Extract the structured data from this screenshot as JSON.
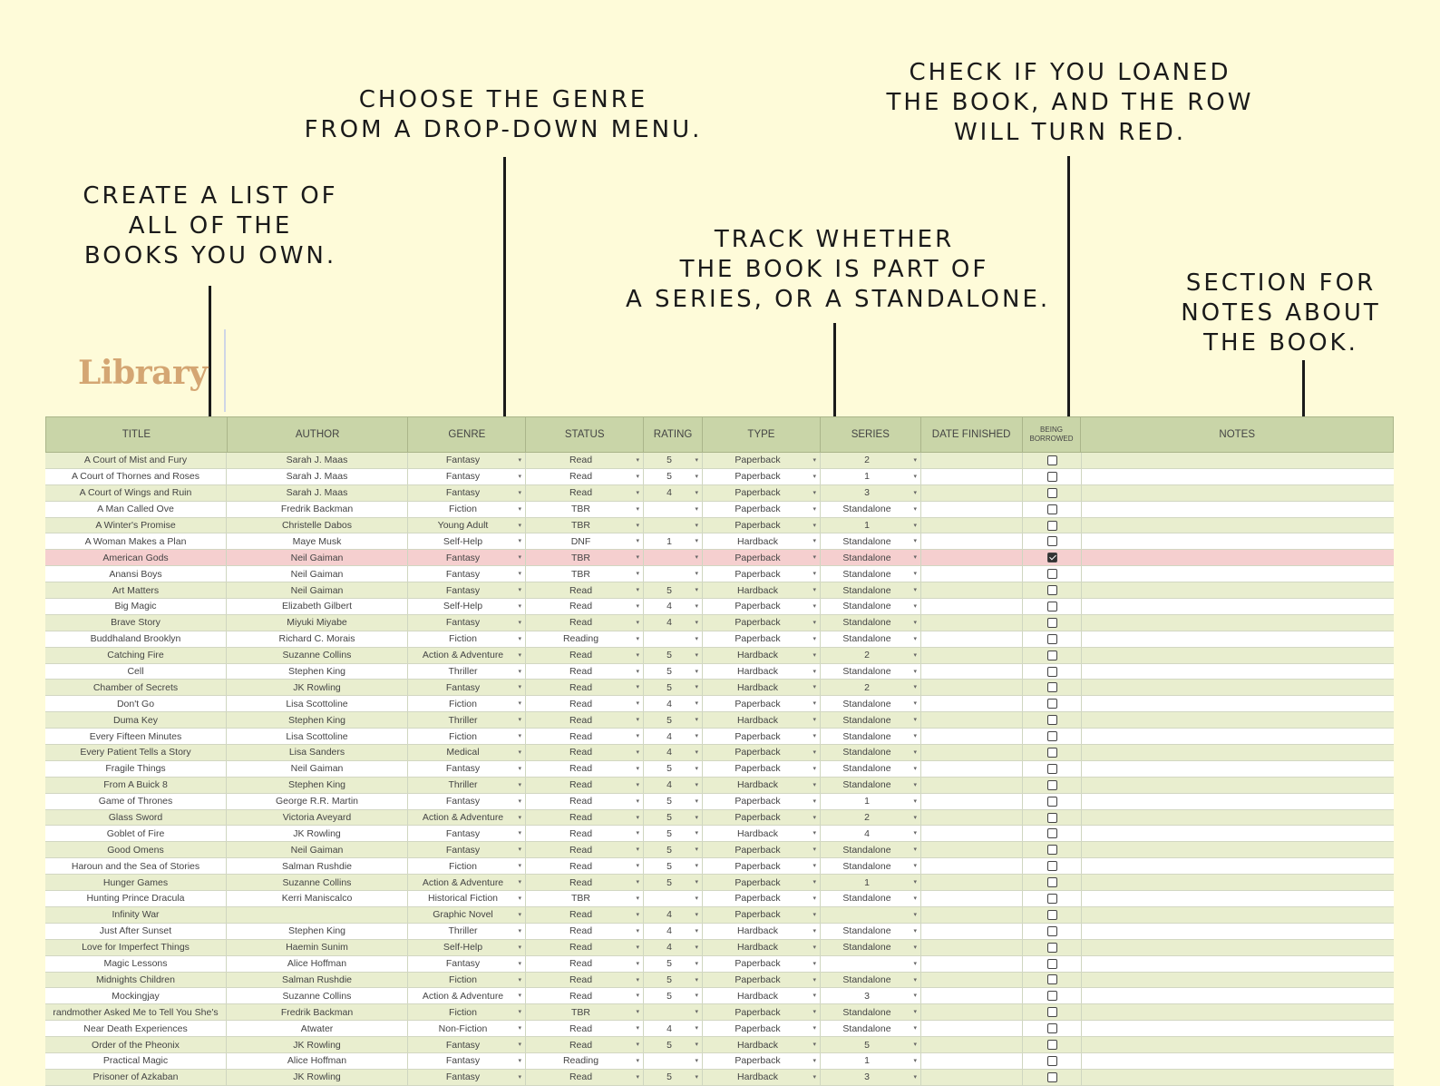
{
  "callouts": {
    "list": [
      "CREATE A LIST OF",
      "ALL OF THE",
      "BOOKS YOU OWN."
    ],
    "genre": [
      "CHOOSE THE GENRE",
      "FROM A DROP-DOWN MENU."
    ],
    "series": [
      "TRACK WHETHER",
      "THE BOOK IS PART OF",
      "A SERIES, OR A STANDALONE."
    ],
    "loan": [
      "CHECK IF YOU LOANED",
      "THE BOOK, AND THE ROW",
      "WILL TURN RED."
    ],
    "notes": [
      "SECTION FOR",
      "NOTES ABOUT",
      "THE BOOK."
    ]
  },
  "sheet_title": "Library",
  "headers": {
    "title": "TITLE",
    "author": "AUTHOR",
    "genre": "GENRE",
    "status": "STATUS",
    "rating": "RATING",
    "type": "TYPE",
    "series": "SERIES",
    "date_finished": "DATE FINISHED",
    "borrowed_line1": "BEING",
    "borrowed_line2": "BORROWED",
    "notes": "NOTES"
  },
  "rows": [
    {
      "title": "A Court of Mist and Fury",
      "author": "Sarah J. Maas",
      "genre": "Fantasy",
      "status": "Read",
      "rating": "5",
      "type": "Paperback",
      "series": "2",
      "borrowed": false
    },
    {
      "title": "A Court of Thornes and Roses",
      "author": "Sarah J. Maas",
      "genre": "Fantasy",
      "status": "Read",
      "rating": "5",
      "type": "Paperback",
      "series": "1",
      "borrowed": false
    },
    {
      "title": "A Court of Wings and Ruin",
      "author": "Sarah J. Maas",
      "genre": "Fantasy",
      "status": "Read",
      "rating": "4",
      "type": "Paperback",
      "series": "3",
      "borrowed": false
    },
    {
      "title": "A Man Called Ove",
      "author": "Fredrik Backman",
      "genre": "Fiction",
      "status": "TBR",
      "rating": "",
      "type": "Paperback",
      "series": "Standalone",
      "borrowed": false
    },
    {
      "title": "A Winter's Promise",
      "author": "Christelle Dabos",
      "genre": "Young Adult",
      "status": "TBR",
      "rating": "",
      "type": "Paperback",
      "series": "1",
      "borrowed": false
    },
    {
      "title": "A Woman Makes a Plan",
      "author": "Maye Musk",
      "genre": "Self-Help",
      "status": "DNF",
      "rating": "1",
      "type": "Hardback",
      "series": "Standalone",
      "borrowed": false
    },
    {
      "title": "American Gods",
      "author": "Neil Gaiman",
      "genre": "Fantasy",
      "status": "TBR",
      "rating": "",
      "type": "Paperback",
      "series": "Standalone",
      "borrowed": true
    },
    {
      "title": "Anansi Boys",
      "author": "Neil Gaiman",
      "genre": "Fantasy",
      "status": "TBR",
      "rating": "",
      "type": "Paperback",
      "series": "Standalone",
      "borrowed": false
    },
    {
      "title": "Art Matters",
      "author": "Neil Gaiman",
      "genre": "Fantasy",
      "status": "Read",
      "rating": "5",
      "type": "Hardback",
      "series": "Standalone",
      "borrowed": false
    },
    {
      "title": "Big Magic",
      "author": "Elizabeth Gilbert",
      "genre": "Self-Help",
      "status": "Read",
      "rating": "4",
      "type": "Paperback",
      "series": "Standalone",
      "borrowed": false
    },
    {
      "title": "Brave Story",
      "author": "Miyuki Miyabe",
      "genre": "Fantasy",
      "status": "Read",
      "rating": "4",
      "type": "Paperback",
      "series": "Standalone",
      "borrowed": false
    },
    {
      "title": "Buddhaland Brooklyn",
      "author": "Richard C. Morais",
      "genre": "Fiction",
      "status": "Reading",
      "rating": "",
      "type": "Paperback",
      "series": "Standalone",
      "borrowed": false
    },
    {
      "title": "Catching Fire",
      "author": "Suzanne Collins",
      "genre": "Action & Adventure",
      "status": "Read",
      "rating": "5",
      "type": "Hardback",
      "series": "2",
      "borrowed": false
    },
    {
      "title": "Cell",
      "author": "Stephen King",
      "genre": "Thriller",
      "status": "Read",
      "rating": "5",
      "type": "Hardback",
      "series": "Standalone",
      "borrowed": false
    },
    {
      "title": "Chamber of Secrets",
      "author": "JK Rowling",
      "genre": "Fantasy",
      "status": "Read",
      "rating": "5",
      "type": "Hardback",
      "series": "2",
      "borrowed": false
    },
    {
      "title": "Don't Go",
      "author": "Lisa Scottoline",
      "genre": "Fiction",
      "status": "Read",
      "rating": "4",
      "type": "Paperback",
      "series": "Standalone",
      "borrowed": false
    },
    {
      "title": "Duma Key",
      "author": "Stephen King",
      "genre": "Thriller",
      "status": "Read",
      "rating": "5",
      "type": "Hardback",
      "series": "Standalone",
      "borrowed": false
    },
    {
      "title": "Every Fifteen Minutes",
      "author": "Lisa Scottoline",
      "genre": "Fiction",
      "status": "Read",
      "rating": "4",
      "type": "Paperback",
      "series": "Standalone",
      "borrowed": false
    },
    {
      "title": "Every Patient Tells a Story",
      "author": "Lisa Sanders",
      "genre": "Medical",
      "status": "Read",
      "rating": "4",
      "type": "Paperback",
      "series": "Standalone",
      "borrowed": false
    },
    {
      "title": "Fragile Things",
      "author": "Neil Gaiman",
      "genre": "Fantasy",
      "status": "Read",
      "rating": "5",
      "type": "Paperback",
      "series": "Standalone",
      "borrowed": false
    },
    {
      "title": "From A Buick 8",
      "author": "Stephen King",
      "genre": "Thriller",
      "status": "Read",
      "rating": "4",
      "type": "Hardback",
      "series": "Standalone",
      "borrowed": false
    },
    {
      "title": "Game of Thrones",
      "author": "George R.R. Martin",
      "genre": "Fantasy",
      "status": "Read",
      "rating": "5",
      "type": "Paperback",
      "series": "1",
      "borrowed": false
    },
    {
      "title": "Glass Sword",
      "author": "Victoria Aveyard",
      "genre": "Action & Adventure",
      "status": "Read",
      "rating": "5",
      "type": "Paperback",
      "series": "2",
      "borrowed": false
    },
    {
      "title": "Goblet of Fire",
      "author": "JK Rowling",
      "genre": "Fantasy",
      "status": "Read",
      "rating": "5",
      "type": "Hardback",
      "series": "4",
      "borrowed": false
    },
    {
      "title": "Good Omens",
      "author": "Neil Gaiman",
      "genre": "Fantasy",
      "status": "Read",
      "rating": "5",
      "type": "Paperback",
      "series": "Standalone",
      "borrowed": false
    },
    {
      "title": "Haroun and the Sea of Stories",
      "author": "Salman Rushdie",
      "genre": "Fiction",
      "status": "Read",
      "rating": "5",
      "type": "Paperback",
      "series": "Standalone",
      "borrowed": false
    },
    {
      "title": "Hunger Games",
      "author": "Suzanne Collins",
      "genre": "Action & Adventure",
      "status": "Read",
      "rating": "5",
      "type": "Paperback",
      "series": "1",
      "borrowed": false
    },
    {
      "title": "Hunting Prince Dracula",
      "author": "Kerri Maniscalco",
      "genre": "Historical Fiction",
      "status": "TBR",
      "rating": "",
      "type": "Paperback",
      "series": "Standalone",
      "borrowed": false
    },
    {
      "title": "Infinity War",
      "author": "",
      "genre": "Graphic Novel",
      "status": "Read",
      "rating": "4",
      "type": "Paperback",
      "series": "",
      "borrowed": false
    },
    {
      "title": "Just After Sunset",
      "author": "Stephen King",
      "genre": "Thriller",
      "status": "Read",
      "rating": "4",
      "type": "Hardback",
      "series": "Standalone",
      "borrowed": false
    },
    {
      "title": "Love for Imperfect Things",
      "author": "Haemin Sunim",
      "genre": "Self-Help",
      "status": "Read",
      "rating": "4",
      "type": "Hardback",
      "series": "Standalone",
      "borrowed": false
    },
    {
      "title": "Magic Lessons",
      "author": "Alice Hoffman",
      "genre": "Fantasy",
      "status": "Read",
      "rating": "5",
      "type": "Paperback",
      "series": "",
      "borrowed": false
    },
    {
      "title": "Midnights Children",
      "author": "Salman Rushdie",
      "genre": "Fiction",
      "status": "Read",
      "rating": "5",
      "type": "Paperback",
      "series": "Standalone",
      "borrowed": false
    },
    {
      "title": "Mockingjay",
      "author": "Suzanne Collins",
      "genre": "Action & Adventure",
      "status": "Read",
      "rating": "5",
      "type": "Hardback",
      "series": "3",
      "borrowed": false
    },
    {
      "title": "randmother Asked Me to Tell You She's",
      "author": "Fredrik Backman",
      "genre": "Fiction",
      "status": "TBR",
      "rating": "",
      "type": "Paperback",
      "series": "Standalone",
      "borrowed": false
    },
    {
      "title": "Near Death Experiences",
      "author": "Atwater",
      "genre": "Non-Fiction",
      "status": "Read",
      "rating": "4",
      "type": "Paperback",
      "series": "Standalone",
      "borrowed": false
    },
    {
      "title": "Order of the Pheonix",
      "author": "JK Rowling",
      "genre": "Fantasy",
      "status": "Read",
      "rating": "5",
      "type": "Hardback",
      "series": "5",
      "borrowed": false
    },
    {
      "title": "Practical Magic",
      "author": "Alice Hoffman",
      "genre": "Fantasy",
      "status": "Reading",
      "rating": "",
      "type": "Paperback",
      "series": "1",
      "borrowed": false
    },
    {
      "title": "Prisoner of Azkaban",
      "author": "JK Rowling",
      "genre": "Fantasy",
      "status": "Read",
      "rating": "5",
      "type": "Hardback",
      "series": "3",
      "borrowed": false
    }
  ]
}
